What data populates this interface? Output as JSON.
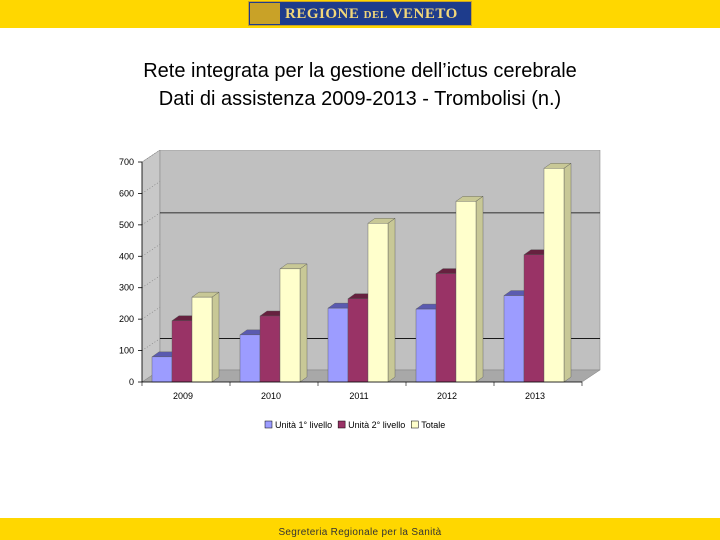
{
  "header": {
    "logo_text_main": "REGIONE",
    "logo_text_small": "DEL",
    "logo_text_end": "VENETO"
  },
  "titles": {
    "line1": "Rete integrata per la gestione dell’ictus cerebrale",
    "line2": "Dati di assistenza 2009-2013 - Trombolisi (n.)"
  },
  "colors": {
    "series1": "#9c9cff",
    "series2": "#993366",
    "series3": "#ffffcc",
    "band": "#ffd700"
  },
  "chart_data": {
    "type": "bar",
    "title": "",
    "xlabel": "",
    "ylabel": "",
    "ylim": [
      0,
      700
    ],
    "yticks": [
      0,
      100,
      200,
      300,
      400,
      500,
      600,
      700
    ],
    "ytick_labels": [
      "0",
      "100",
      "200",
      "300",
      "400",
      "500",
      "600",
      "700"
    ],
    "categories": [
      "2009",
      "2010",
      "2011",
      "2012",
      "2013"
    ],
    "series": [
      {
        "name": "Unità 1° livello",
        "values": [
          80,
          150,
          235,
          232,
          275
        ]
      },
      {
        "name": "Unità 2° livello",
        "values": [
          195,
          210,
          265,
          345,
          405
        ]
      },
      {
        "name": "Totale",
        "values": [
          270,
          360,
          505,
          575,
          680
        ]
      }
    ],
    "legend_position": "bottom",
    "grid": "partial"
  },
  "footer": {
    "text": "Segreteria Regionale per la Sanità"
  }
}
